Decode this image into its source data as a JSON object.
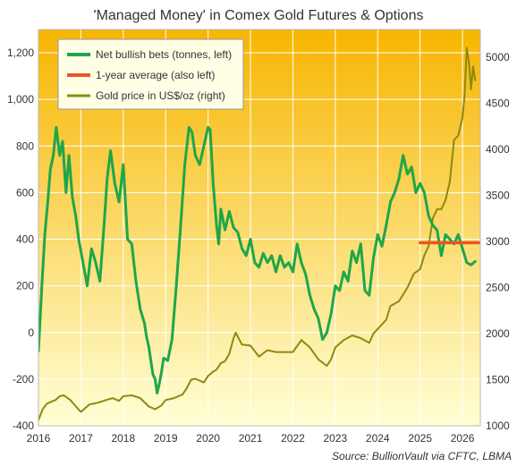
{
  "chart_data": {
    "type": "line",
    "title": "'Managed Money' in Comex Gold Futures & Options",
    "source": "Source: BullionVault via CFTC, LBMA",
    "xlim": [
      2016,
      2026.42
    ],
    "x_ticks": [
      "2016",
      "2017",
      "2018",
      "2019",
      "2020",
      "2021",
      "2022",
      "2023",
      "2024",
      "2025",
      "2026"
    ],
    "y_left": {
      "lim": [
        -400,
        1300
      ],
      "ticks": [
        "-400",
        "-200",
        "0",
        "200",
        "400",
        "600",
        "800",
        "1,000",
        "1,200"
      ]
    },
    "y_right": {
      "lim": [
        1000,
        5300
      ],
      "ticks": [
        "1000",
        "1500",
        "2000",
        "2500",
        "3000",
        "3500",
        "4000",
        "4500",
        "5000"
      ]
    },
    "grid": true,
    "legend_placement": "top-left",
    "colors": {
      "net": "#1fa64a",
      "average": "#e8542a",
      "gold": "#8a8a12",
      "background_top": "#f7b500",
      "background_bottom": "#ffffd6",
      "grid": "#ffffff"
    },
    "series": [
      {
        "name": "Net bullish bets (tonnes, left)",
        "axis": "left",
        "x": [
          2016.0,
          2016.08,
          2016.15,
          2016.22,
          2016.28,
          2016.35,
          2016.42,
          2016.5,
          2016.57,
          2016.65,
          2016.72,
          2016.8,
          2016.88,
          2016.95,
          2017.05,
          2017.15,
          2017.25,
          2017.35,
          2017.45,
          2017.55,
          2017.62,
          2017.7,
          2017.8,
          2017.9,
          2018.0,
          2018.1,
          2018.2,
          2018.3,
          2018.4,
          2018.5,
          2018.55,
          2018.6,
          2018.65,
          2018.7,
          2018.75,
          2018.8,
          2018.85,
          2018.9,
          2018.95,
          2019.05,
          2019.15,
          2019.25,
          2019.35,
          2019.45,
          2019.55,
          2019.62,
          2019.7,
          2019.8,
          2019.9,
          2020.0,
          2020.05,
          2020.12,
          2020.2,
          2020.25,
          2020.3,
          2020.4,
          2020.5,
          2020.6,
          2020.7,
          2020.8,
          2020.9,
          2021.0,
          2021.1,
          2021.2,
          2021.3,
          2021.4,
          2021.5,
          2021.6,
          2021.7,
          2021.8,
          2021.9,
          2022.0,
          2022.1,
          2022.2,
          2022.3,
          2022.4,
          2022.5,
          2022.6,
          2022.7,
          2022.8,
          2022.9,
          2023.0,
          2023.1,
          2023.2,
          2023.3,
          2023.4,
          2023.5,
          2023.6,
          2023.7,
          2023.8,
          2023.9,
          2024.0,
          2024.1,
          2024.2,
          2024.3,
          2024.4,
          2024.5,
          2024.6,
          2024.7,
          2024.8,
          2024.9,
          2025.0,
          2025.1,
          2025.2,
          2025.3,
          2025.4,
          2025.5,
          2025.6,
          2025.7,
          2025.8,
          2025.9,
          2026.0,
          2026.1,
          2026.2,
          2026.3
        ],
        "y": [
          -80,
          200,
          420,
          560,
          700,
          760,
          880,
          760,
          820,
          600,
          760,
          580,
          500,
          400,
          300,
          200,
          360,
          300,
          220,
          470,
          660,
          780,
          640,
          560,
          720,
          400,
          380,
          220,
          100,
          40,
          -20,
          -60,
          -120,
          -180,
          -200,
          -260,
          -220,
          -170,
          -110,
          -120,
          -30,
          200,
          450,
          720,
          880,
          860,
          760,
          720,
          800,
          880,
          870,
          640,
          460,
          380,
          530,
          440,
          520,
          450,
          430,
          360,
          330,
          400,
          300,
          280,
          340,
          300,
          330,
          260,
          330,
          280,
          300,
          260,
          380,
          300,
          250,
          160,
          100,
          60,
          -30,
          0,
          80,
          200,
          180,
          260,
          220,
          350,
          300,
          380,
          180,
          160,
          320,
          420,
          370,
          460,
          560,
          600,
          660,
          760,
          680,
          710,
          600,
          640,
          600,
          500,
          460,
          440,
          330,
          420,
          400,
          380,
          420,
          360,
          300,
          290,
          305
        ],
        "color": "#1fa64a"
      },
      {
        "name": "1-year average (also left)",
        "axis": "left",
        "x": [
          2025.0,
          2026.42
        ],
        "y": [
          385,
          385
        ],
        "color": "#e8542a"
      },
      {
        "name": "Gold price in US$/oz (right)",
        "axis": "right",
        "x": [
          2016.0,
          2016.1,
          2016.2,
          2016.3,
          2016.4,
          2016.5,
          2016.6,
          2016.75,
          2016.9,
          2017.0,
          2017.2,
          2017.4,
          2017.6,
          2017.75,
          2017.9,
          2018.0,
          2018.2,
          2018.4,
          2018.6,
          2018.75,
          2018.9,
          2019.0,
          2019.2,
          2019.4,
          2019.5,
          2019.6,
          2019.7,
          2019.8,
          2019.9,
          2020.0,
          2020.1,
          2020.2,
          2020.3,
          2020.4,
          2020.5,
          2020.6,
          2020.65,
          2020.8,
          2021.0,
          2021.2,
          2021.4,
          2021.6,
          2021.8,
          2022.0,
          2022.2,
          2022.4,
          2022.6,
          2022.8,
          2022.9,
          2023.0,
          2023.2,
          2023.4,
          2023.6,
          2023.8,
          2023.9,
          2024.0,
          2024.2,
          2024.3,
          2024.5,
          2024.7,
          2024.85,
          2025.0,
          2025.1,
          2025.2,
          2025.3,
          2025.4,
          2025.5,
          2025.6,
          2025.7,
          2025.8,
          2025.9,
          2026.0,
          2026.05,
          2026.1,
          2026.15,
          2026.2,
          2026.25,
          2026.3
        ],
        "y": [
          1060,
          1180,
          1240,
          1260,
          1280,
          1320,
          1330,
          1280,
          1200,
          1150,
          1230,
          1250,
          1280,
          1300,
          1270,
          1320,
          1330,
          1300,
          1210,
          1180,
          1220,
          1280,
          1300,
          1340,
          1410,
          1500,
          1510,
          1490,
          1470,
          1540,
          1580,
          1610,
          1680,
          1700,
          1780,
          1950,
          2010,
          1880,
          1870,
          1750,
          1820,
          1800,
          1800,
          1800,
          1930,
          1850,
          1720,
          1650,
          1720,
          1850,
          1930,
          1980,
          1950,
          1900,
          2000,
          2050,
          2150,
          2300,
          2350,
          2500,
          2650,
          2700,
          2850,
          2950,
          3250,
          3350,
          3350,
          3450,
          3650,
          4100,
          4150,
          4350,
          4600,
          5100,
          4950,
          4650,
          4900,
          4750
        ],
        "color": "#8a8a12"
      }
    ]
  }
}
